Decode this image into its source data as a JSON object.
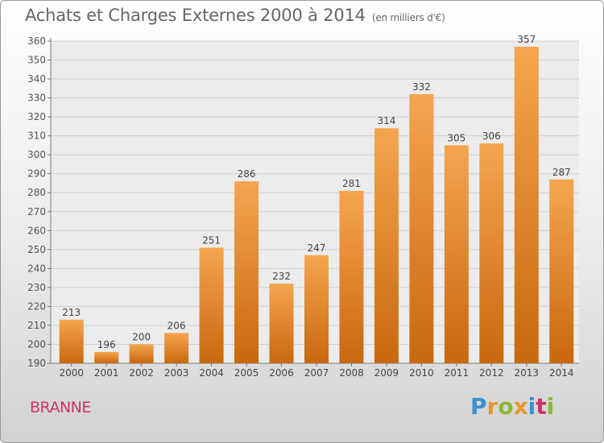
{
  "title": "Achats et Charges Externes 2000 à 2014",
  "unit": "(en milliers d'€)",
  "commune": "BRANNE",
  "logo": "Proxiti",
  "colors": {
    "bar_top": "#f5a54f",
    "bar_bottom": "#c8680f",
    "title": "#666666",
    "commune": "#cc3366",
    "grid": "#cfcfcf"
  },
  "chart_data": {
    "type": "bar",
    "categories": [
      "2000",
      "2001",
      "2002",
      "2003",
      "2004",
      "2005",
      "2006",
      "2007",
      "2008",
      "2009",
      "2010",
      "2011",
      "2012",
      "2013",
      "2014"
    ],
    "values": [
      213,
      196,
      200,
      206,
      251,
      286,
      232,
      247,
      281,
      314,
      332,
      305,
      306,
      357,
      287
    ],
    "ylim": [
      190,
      360
    ],
    "yticks": [
      190,
      200,
      210,
      220,
      230,
      240,
      250,
      260,
      270,
      280,
      290,
      300,
      310,
      320,
      330,
      340,
      350,
      360
    ],
    "grid": true,
    "data_labels": true
  }
}
